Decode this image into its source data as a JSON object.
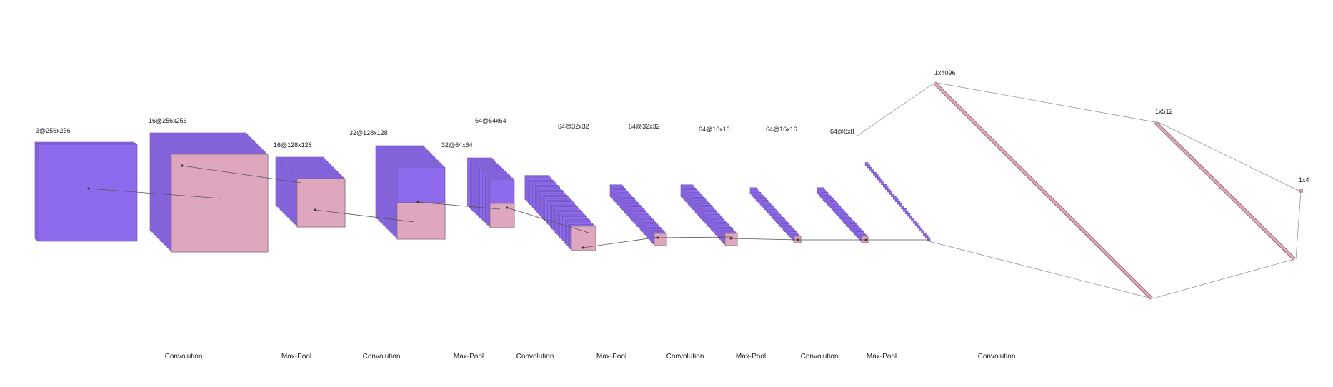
{
  "colors": {
    "feature_map": "#8e6aed",
    "feature_map_edge": "#6a4fb0",
    "highlight": "#dea7be",
    "highlight_edge": "#7a5a66",
    "line": "#8a8a8a",
    "text": "#222222"
  },
  "layers": [
    {
      "label": "3@256x256"
    },
    {
      "label": "16@256x256"
    },
    {
      "label": "16@128x128"
    },
    {
      "label": "32@128x128"
    },
    {
      "label": "32@64x64"
    },
    {
      "label": "64@64x64"
    },
    {
      "label": "64@32x32"
    },
    {
      "label": "64@32x32"
    },
    {
      "label": "64@16x16"
    },
    {
      "label": "64@16x16"
    },
    {
      "label": "64@8x8"
    }
  ],
  "dense_layers": [
    {
      "label": "1x4096"
    },
    {
      "label": "1x512"
    },
    {
      "label": "1x4"
    }
  ],
  "operations": [
    {
      "label": "Convolution"
    },
    {
      "label": "Max-Pool"
    },
    {
      "label": "Convolution"
    },
    {
      "label": "Max-Pool"
    },
    {
      "label": "Convolution"
    },
    {
      "label": "Max-Pool"
    },
    {
      "label": "Convolution"
    },
    {
      "label": "Max-Pool"
    },
    {
      "label": "Convolution"
    },
    {
      "label": "Max-Pool"
    },
    {
      "label": "Convolution"
    }
  ]
}
